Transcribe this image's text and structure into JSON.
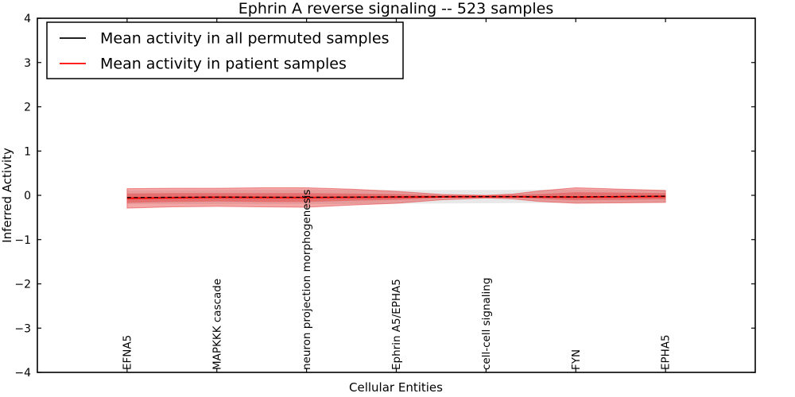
{
  "figure": {
    "title": "Ephrin A  reverse signaling -- 523 samples",
    "xlabel": "Cellular Entities",
    "ylabel": "Inferred Activity"
  },
  "legend": {
    "position": "upper left",
    "items": [
      {
        "label": "Mean activity in all permuted samples",
        "color": "#000000"
      },
      {
        "label": "Mean activity in patient samples",
        "color": "#ff0000"
      }
    ]
  },
  "chart_data": {
    "type": "line",
    "title": "Ephrin A  reverse signaling -- 523 samples",
    "xlabel": "Cellular Entities",
    "ylabel": "Inferred Activity",
    "grid": false,
    "legend_position": "upper left",
    "xlim": [
      -1,
      7
    ],
    "ylim": [
      -4,
      4
    ],
    "ytick_values": [
      4,
      3,
      2,
      1,
      0,
      -1,
      -2,
      -3,
      -4
    ],
    "ytick_labels": [
      "4",
      "3",
      "2",
      "1",
      "0",
      "−1",
      "−2",
      "−3",
      "−4"
    ],
    "categories": [
      "EFNA5",
      "MAPKKK cascade",
      "neuron projection morphogenesis",
      "Ephrin A5/EPHA5",
      "cell-cell signaling",
      "FYN",
      "EPHA5"
    ],
    "series": [
      {
        "name": "Mean activity in all permuted samples",
        "color": "#000000",
        "line_style": "dashed",
        "values": [
          -0.05,
          -0.04,
          -0.045,
          -0.035,
          -0.03,
          -0.035,
          -0.02
        ]
      },
      {
        "name": "Mean activity in patient samples",
        "color": "#ff0000",
        "line_style": "solid",
        "values": [
          -0.065,
          -0.045,
          -0.05,
          -0.04,
          -0.03,
          -0.04,
          -0.025
        ]
      }
    ],
    "bands": [
      {
        "name": "permuted-samples-std-band",
        "color": "#000000",
        "opacity": 0.09,
        "edge": false,
        "x": [
          0,
          1,
          2,
          3,
          4,
          5,
          6
        ],
        "upper": [
          0.11,
          0.12,
          0.13,
          0.12,
          0.12,
          0.13,
          0.12
        ],
        "lower": [
          -0.2,
          -0.2,
          -0.2,
          -0.19,
          -0.18,
          -0.17,
          -0.17
        ]
      },
      {
        "name": "patient-samples-std-band-outer",
        "color": "#e53c3c",
        "opacity": 0.45,
        "edge": true,
        "x": [
          0,
          0.5,
          1,
          1.5,
          2,
          2.5,
          3,
          3.5,
          4,
          4.3,
          4.6,
          5,
          5.5,
          6
        ],
        "upper": [
          0.15,
          0.16,
          0.16,
          0.17,
          0.17,
          0.14,
          0.09,
          0.02,
          0.0,
          0.03,
          0.1,
          0.17,
          0.14,
          0.11
        ],
        "lower": [
          -0.29,
          -0.26,
          -0.25,
          -0.26,
          -0.27,
          -0.22,
          -0.18,
          -0.1,
          -0.06,
          -0.08,
          -0.14,
          -0.18,
          -0.17,
          -0.16
        ]
      },
      {
        "name": "patient-samples-std-band-inner",
        "color": "#e53c3c",
        "opacity": 0.45,
        "edge": false,
        "x": [
          0,
          0.5,
          1,
          1.5,
          2,
          2.5,
          3,
          3.5,
          4,
          4.3,
          4.6,
          5,
          5.5,
          6
        ],
        "upper": [
          0.04,
          0.05,
          0.05,
          0.05,
          0.05,
          0.04,
          0.03,
          0.0,
          -0.01,
          0.01,
          0.03,
          0.07,
          0.06,
          0.05
        ],
        "lower": [
          -0.17,
          -0.15,
          -0.14,
          -0.15,
          -0.15,
          -0.12,
          -0.1,
          -0.06,
          -0.04,
          -0.05,
          -0.08,
          -0.11,
          -0.1,
          -0.09
        ]
      },
      {
        "name": "patient-samples-std-band-core",
        "color": "#e53c3c",
        "opacity": 0.45,
        "edge": false,
        "x": [
          0,
          1,
          2,
          3,
          4,
          5,
          6
        ],
        "upper": [
          -0.04,
          -0.02,
          -0.03,
          -0.02,
          -0.01,
          -0.02,
          0.0
        ],
        "lower": [
          -0.09,
          -0.07,
          -0.07,
          -0.06,
          -0.05,
          -0.06,
          -0.05
        ]
      }
    ]
  }
}
